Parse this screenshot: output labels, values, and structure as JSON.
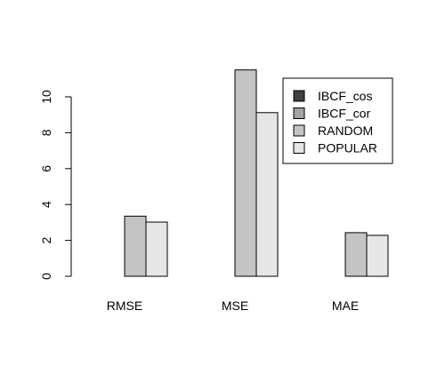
{
  "chart_data": {
    "type": "bar",
    "categories": [
      "RMSE",
      "MSE",
      "MAE"
    ],
    "series": [
      {
        "name": "IBCF_cos",
        "color": "#404040",
        "values": [
          0,
          0,
          0
        ]
      },
      {
        "name": "IBCF_cor",
        "color": "#a3a3a3",
        "values": [
          0,
          0,
          0
        ]
      },
      {
        "name": "RANDOM",
        "color": "#c4c4c4",
        "values": [
          3.35,
          11.5,
          2.43
        ]
      },
      {
        "name": "POPULAR",
        "color": "#e6e6e6",
        "values": [
          3.02,
          9.12,
          2.28
        ]
      }
    ],
    "yticks": [
      0,
      2,
      4,
      6,
      8,
      10
    ],
    "ylim": [
      0,
      11.5
    ],
    "title": "",
    "xlabel": "",
    "ylabel": "",
    "legend_position": "top-right",
    "grid": false
  }
}
